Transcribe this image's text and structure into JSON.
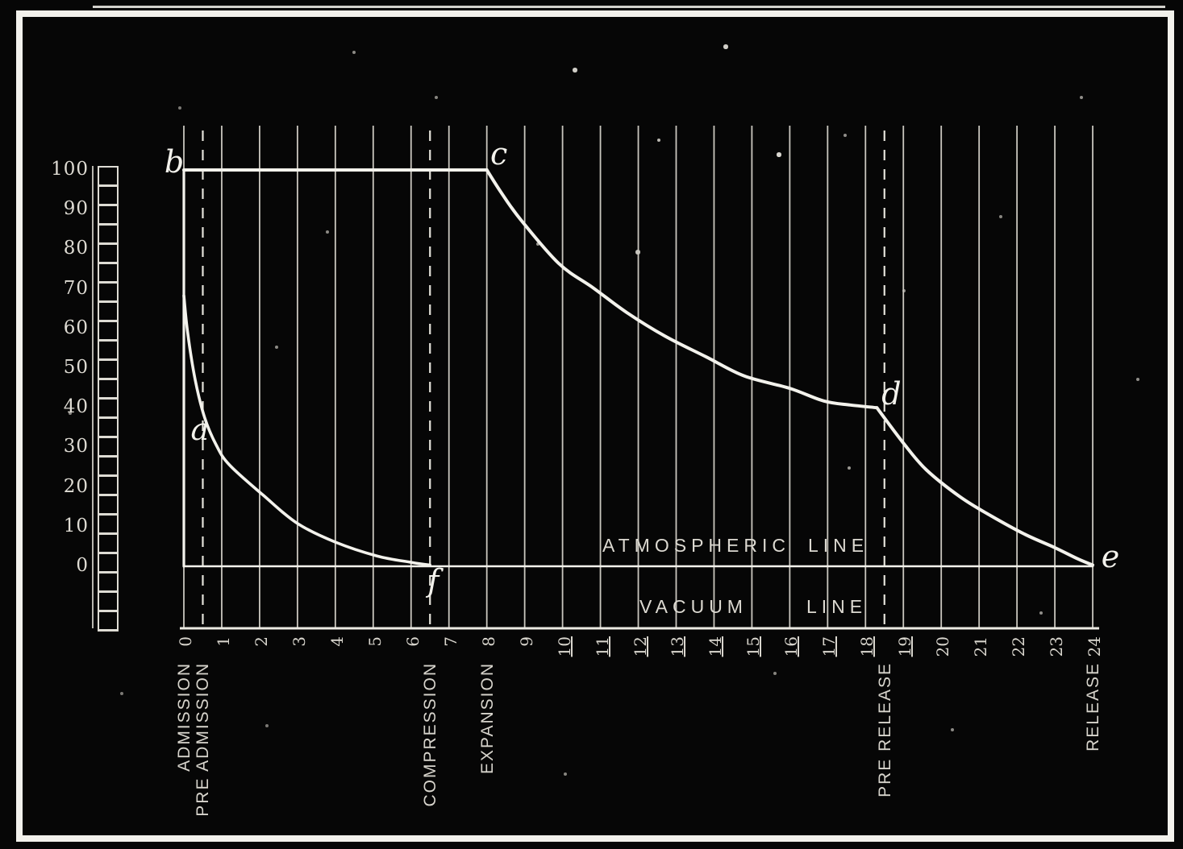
{
  "figure": {
    "background": "#060606",
    "ink": "#f3f2ec",
    "grid_color": "#c9c6be"
  },
  "chart_data": {
    "type": "line",
    "title": "",
    "xlabel": "",
    "ylabel": "",
    "xlim": [
      0,
      24
    ],
    "ylim": [
      0,
      100
    ],
    "grid": "vertical-only",
    "y_ticks": [
      {
        "v": 100,
        "label": "100"
      },
      {
        "v": 90,
        "label": "90"
      },
      {
        "v": 80,
        "label": "80"
      },
      {
        "v": 70,
        "label": "70"
      },
      {
        "v": 60,
        "label": "60"
      },
      {
        "v": 50,
        "label": "50"
      },
      {
        "v": 40,
        "label": "40"
      },
      {
        "v": 30,
        "label": "30"
      },
      {
        "v": 20,
        "label": "20"
      },
      {
        "v": 10,
        "label": "10"
      },
      {
        "v": 0,
        "label": "0"
      }
    ],
    "x_ticks": [
      {
        "v": 0,
        "label": "0"
      },
      {
        "v": 1,
        "label": "1"
      },
      {
        "v": 2,
        "label": "2"
      },
      {
        "v": 3,
        "label": "3"
      },
      {
        "v": 4,
        "label": "4"
      },
      {
        "v": 5,
        "label": "5"
      },
      {
        "v": 6,
        "label": "6"
      },
      {
        "v": 7,
        "label": "7"
      },
      {
        "v": 8,
        "label": "8"
      },
      {
        "v": 9,
        "label": "9"
      },
      {
        "v": 10,
        "label": "10",
        "underline": true
      },
      {
        "v": 11,
        "label": "11",
        "underline": true
      },
      {
        "v": 12,
        "label": "12",
        "underline": true
      },
      {
        "v": 13,
        "label": "13",
        "underline": true
      },
      {
        "v": 14,
        "label": "14",
        "underline": true
      },
      {
        "v": 15,
        "label": "15",
        "underline": true
      },
      {
        "v": 16,
        "label": "16",
        "underline": true
      },
      {
        "v": 17,
        "label": "17",
        "underline": true
      },
      {
        "v": 18,
        "label": "18",
        "underline": true
      },
      {
        "v": 19,
        "label": "19",
        "underline": true
      },
      {
        "v": 20,
        "label": "20"
      },
      {
        "v": 21,
        "label": "21"
      },
      {
        "v": 22,
        "label": "22"
      },
      {
        "v": 23,
        "label": "23"
      },
      {
        "v": 24,
        "label": "24"
      }
    ],
    "dashed_lines_x": [
      0.5,
      6.5,
      18.5
    ],
    "series": [
      {
        "name": "admission-line",
        "points": [
          [
            0,
            100
          ],
          [
            8,
            100
          ]
        ]
      },
      {
        "name": "admission-boundary-line",
        "points": [
          [
            0,
            100
          ],
          [
            0,
            0
          ]
        ]
      },
      {
        "name": "expansion-curve",
        "points": [
          [
            8,
            100
          ],
          [
            8.4,
            94
          ],
          [
            8.9,
            87.4
          ],
          [
            9.9,
            76.4
          ],
          [
            10.8,
            70.3
          ],
          [
            11.7,
            64
          ],
          [
            12.7,
            58.1
          ],
          [
            13.8,
            52.8
          ],
          [
            14.8,
            48
          ],
          [
            16,
            44.9
          ],
          [
            16.9,
            41.7
          ],
          [
            17.6,
            40.7
          ],
          [
            18.3,
            40
          ]
        ]
      },
      {
        "name": "release-curve",
        "points": [
          [
            18.3,
            40
          ],
          [
            19,
            31.1
          ],
          [
            19.6,
            24.4
          ],
          [
            20.5,
            17.5
          ],
          [
            21.3,
            12.8
          ],
          [
            22.2,
            8.1
          ],
          [
            23,
            4.7
          ],
          [
            23.6,
            1.9
          ],
          [
            24,
            0.3
          ]
        ]
      },
      {
        "name": "atmospheric-exhaust-line",
        "points": [
          [
            0,
            0
          ],
          [
            24,
            0
          ]
        ]
      },
      {
        "name": "compression-curve",
        "points": [
          [
            6.5,
            0.3
          ],
          [
            6,
            1
          ],
          [
            5.1,
            2.6
          ],
          [
            4,
            6.1
          ],
          [
            3,
            10.8
          ],
          [
            2.1,
            17.9
          ],
          [
            1.2,
            25.6
          ],
          [
            0.85,
            30.7
          ],
          [
            0.55,
            37.5
          ],
          [
            0.3,
            47
          ],
          [
            0.1,
            59
          ],
          [
            0,
            68.3
          ]
        ]
      }
    ],
    "points": [
      {
        "label": "a",
        "x": 0.55,
        "y": 37.5
      },
      {
        "label": "b",
        "x": 0,
        "y": 100
      },
      {
        "label": "c",
        "x": 8,
        "y": 100
      },
      {
        "label": "d",
        "x": 18.3,
        "y": 40
      },
      {
        "label": "e",
        "x": 24,
        "y": 0
      },
      {
        "label": "f",
        "x": 6.5,
        "y": 0
      }
    ],
    "phase_labels": [
      {
        "label": "ADMISSION",
        "x": 0
      },
      {
        "label": "PRE ADMISSION",
        "x": 0.5
      },
      {
        "label": "COMPRESSION",
        "x": 6.5
      },
      {
        "label": "EXPANSION",
        "x": 8
      },
      {
        "label": "PRE RELEASE",
        "x": 18.5
      },
      {
        "label": "RELEASE",
        "x": 24
      }
    ],
    "line_labels": {
      "atmospheric": [
        "ATMOSPHERIC",
        "LINE"
      ],
      "vacuum": [
        "VACUUM",
        "LINE"
      ]
    },
    "legend": "none"
  }
}
